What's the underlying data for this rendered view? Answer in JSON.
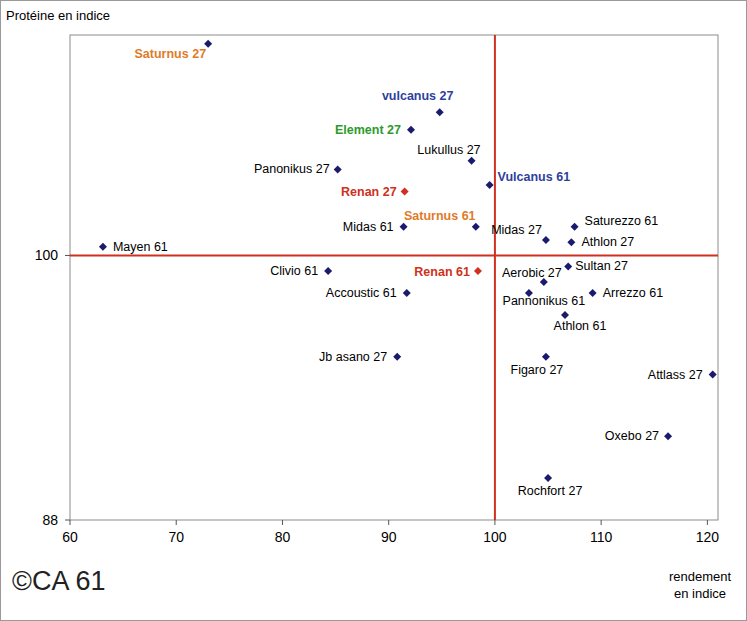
{
  "chart_data": {
    "type": "scatter",
    "y_label": "Protéine en indice",
    "x_label": [
      "rendement",
      "en indice"
    ],
    "annotations": [
      "©CA 61"
    ],
    "marker": "diamond",
    "grid": false,
    "xlim": [
      60,
      121
    ],
    "ylim": [
      88,
      110
    ],
    "xticks": [
      60,
      70,
      80,
      90,
      100,
      110,
      120
    ],
    "yticks": [
      88,
      100
    ],
    "reference_lines": {
      "x": 100,
      "y": 100
    },
    "labels": [
      "Saturnus 27",
      "vulcanus 27",
      "Element 27",
      "Lukullus 27",
      "Panonikus 27",
      "Vulcanus 61",
      "Renan 27",
      "Midas 61",
      "Saturnus 61",
      "Midas 27",
      "Saturezzo 61",
      "Athlon 27",
      "Mayen 61",
      "Clivio 61",
      "Renan 61",
      "Sultan 27",
      "Aerobic 27",
      "Accoustic 61",
      "Pannonikus 61",
      "Arrezzo 61",
      "Athlon 61",
      "Jb asano 27",
      "Figaro 27",
      "Attlass 27",
      "Oxebo 27",
      "Rochfort 27"
    ],
    "x": [
      73.0,
      94.8,
      92.1,
      97.8,
      85.2,
      99.5,
      91.5,
      91.4,
      98.2,
      104.8,
      107.5,
      107.2,
      63.1,
      84.3,
      98.4,
      106.9,
      104.6,
      91.7,
      103.2,
      109.2,
      106.6,
      90.8,
      104.8,
      120.5,
      116.3,
      105.0
    ],
    "values": [
      109.6,
      106.5,
      105.7,
      104.3,
      103.9,
      103.2,
      102.9,
      101.3,
      101.3,
      100.7,
      101.3,
      100.6,
      100.4,
      99.3,
      99.3,
      99.5,
      98.8,
      98.3,
      98.3,
      98.3,
      97.3,
      95.4,
      95.4,
      94.6,
      91.8,
      89.9
    ],
    "colors": [
      "#e07b2a",
      "#2e3f9e",
      "#2e9a2e",
      "#000000",
      "#000000",
      "#2e3f9e",
      "#d03020",
      "#000000",
      "#e07b2a",
      "#000000",
      "#000000",
      "#000000",
      "#000000",
      "#000000",
      "#d03020",
      "#000000",
      "#000000",
      "#000000",
      "#000000",
      "#000000",
      "#000000",
      "#000000",
      "#000000",
      "#000000",
      "#000000",
      "#000000"
    ]
  }
}
